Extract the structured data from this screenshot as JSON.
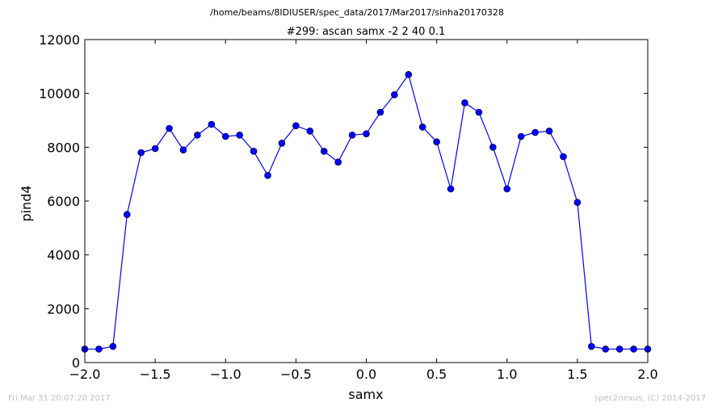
{
  "header": {
    "file_path": "/home/beams/8IDIUSER/spec_data/2017/Mar2017/sinha20170328"
  },
  "footer": {
    "timestamp": "Fri Mar 31 20:07:20 2017",
    "credit": "spec2nexus, (C) 2014-2017"
  },
  "chart_data": {
    "type": "line",
    "title": "#299: ascan  samx -2 2  40 0.1",
    "xlabel": "samx",
    "ylabel": "pind4",
    "xlim": [
      -2.0,
      2.0
    ],
    "ylim": [
      0,
      12000
    ],
    "xticks": [
      -2.0,
      -1.5,
      -1.0,
      -0.5,
      0.0,
      0.5,
      1.0,
      1.5,
      2.0
    ],
    "xtick_labels": [
      "−2.0",
      "−1.5",
      "−1.0",
      "−0.5",
      "0.0",
      "0.5",
      "1.0",
      "1.5",
      "2.0"
    ],
    "yticks": [
      0,
      2000,
      4000,
      6000,
      8000,
      10000,
      12000
    ],
    "ytick_labels": [
      "0",
      "2000",
      "4000",
      "6000",
      "8000",
      "10000",
      "12000"
    ],
    "grid": false,
    "series": [
      {
        "color": "#0000ff",
        "marker": "circle",
        "x": [
          -2.0,
          -1.9,
          -1.8,
          -1.7,
          -1.6,
          -1.5,
          -1.4,
          -1.3,
          -1.2,
          -1.1,
          -1.0,
          -0.9,
          -0.8,
          -0.7,
          -0.6,
          -0.5,
          -0.4,
          -0.3,
          -0.2,
          -0.1,
          0.0,
          0.1,
          0.2,
          0.3,
          0.4,
          0.5,
          0.6,
          0.7,
          0.8,
          0.9,
          1.0,
          1.1,
          1.2,
          1.3,
          1.4,
          1.5,
          1.6,
          1.7,
          1.8,
          1.9,
          2.0
        ],
        "y": [
          500,
          500,
          600,
          5500,
          7800,
          7950,
          8700,
          7900,
          8450,
          8850,
          8400,
          8450,
          7850,
          6950,
          8150,
          8800,
          8600,
          7850,
          7450,
          8450,
          8500,
          9300,
          9950,
          10700,
          8750,
          8200,
          6450,
          9650,
          9300,
          8000,
          6450,
          8400,
          8550,
          8600,
          7650,
          5950,
          600,
          500,
          500,
          500,
          500
        ]
      }
    ]
  }
}
